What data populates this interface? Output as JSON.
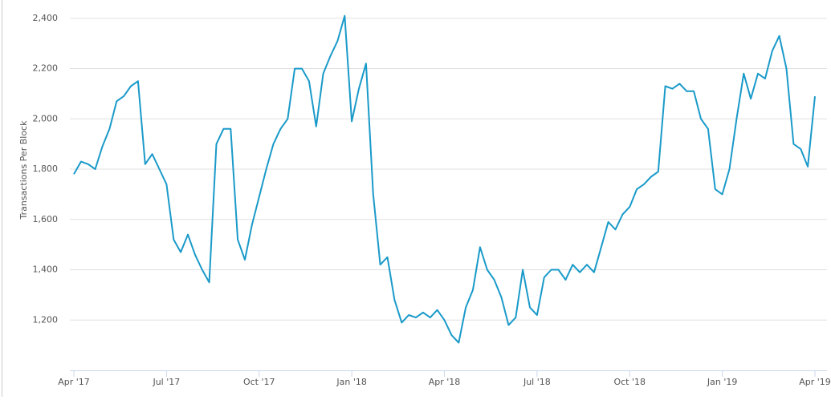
{
  "chart_data": {
    "type": "line",
    "y_label": "Transactions Per Block",
    "categories": [
      "Apr '17",
      null,
      null,
      null,
      null,
      null,
      null,
      null,
      null,
      null,
      null,
      null,
      null,
      "Jul '17",
      null,
      null,
      null,
      null,
      null,
      null,
      null,
      null,
      null,
      null,
      null,
      null,
      "Oct '17",
      null,
      null,
      null,
      null,
      null,
      null,
      null,
      null,
      null,
      null,
      null,
      null,
      "Jan '18",
      null,
      null,
      null,
      null,
      null,
      null,
      null,
      null,
      null,
      null,
      null,
      null,
      "Apr '18",
      null,
      null,
      null,
      null,
      null,
      null,
      null,
      null,
      null,
      null,
      null,
      null,
      "Jul '18",
      null,
      null,
      null,
      null,
      null,
      null,
      null,
      null,
      null,
      null,
      null,
      null,
      "Oct '18",
      null,
      null,
      null,
      null,
      null,
      null,
      null,
      null,
      null,
      null,
      null,
      null,
      "Jan '19",
      null,
      null,
      null,
      null,
      null,
      null,
      null,
      null,
      null,
      null,
      null,
      null,
      "Apr '19"
    ],
    "series": [
      {
        "color": "#1a9ac9",
        "values": [
          1780,
          1830,
          1820,
          1800,
          1890,
          1960,
          2070,
          2090,
          2130,
          2150,
          1820,
          1860,
          1800,
          1740,
          1520,
          1470,
          1540,
          1460,
          1400,
          1350,
          1900,
          1960,
          1960,
          1520,
          1440,
          1580,
          1690,
          1800,
          1900,
          1960,
          2000,
          2200,
          2200,
          2150,
          1970,
          2180,
          2250,
          2310,
          2410,
          1990,
          2120,
          2220,
          1700,
          1420,
          1450,
          1280,
          1190,
          1220,
          1210,
          1230,
          1210,
          1240,
          1200,
          1140,
          1110,
          1250,
          1320,
          1490,
          1400,
          1360,
          1290,
          1180,
          1210,
          1400,
          1250,
          1220,
          1370,
          1400,
          1400,
          1360,
          1420,
          1390,
          1420,
          1390,
          1490,
          1590,
          1560,
          1620,
          1650,
          1720,
          1740,
          1770,
          1790,
          2130,
          2120,
          2140,
          2110,
          2110,
          2000,
          1960,
          1720,
          1700,
          1800,
          2000,
          2180,
          2080,
          2180,
          2160,
          2270,
          2330,
          2200,
          1900,
          1880,
          1810,
          2090
        ]
      }
    ],
    "ylim": [
      1000,
      2460
    ],
    "yticks": [
      {
        "value": 1200,
        "label": "1,200"
      },
      {
        "value": 1400,
        "label": "1,400"
      },
      {
        "value": 1600,
        "label": "1,600"
      },
      {
        "value": 1800,
        "label": "1,800"
      },
      {
        "value": 2000,
        "label": "2,000"
      },
      {
        "value": 2200,
        "label": "2,200"
      },
      {
        "value": 2400,
        "label": "2,400"
      }
    ],
    "grid": true
  }
}
